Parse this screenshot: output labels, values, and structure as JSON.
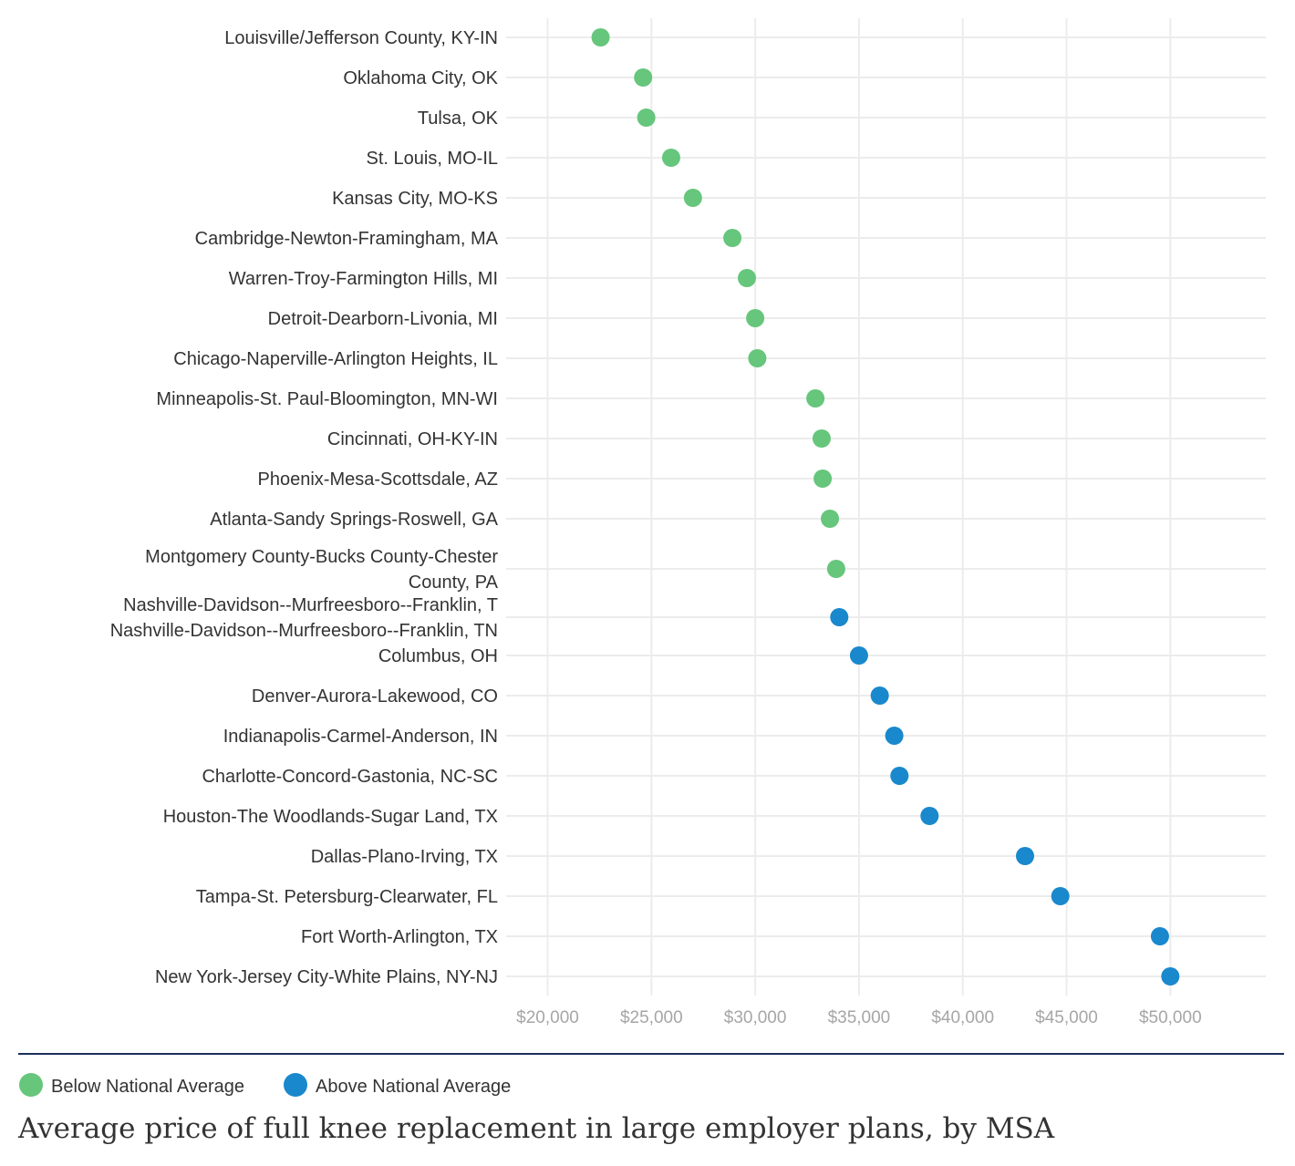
{
  "chart_data": {
    "type": "scatter",
    "title": "Average price of full knee replacement in large employer plans, by MSA",
    "xlabel": "",
    "ylabel": "",
    "xlim": [
      18000,
      54600
    ],
    "x_ticks": [
      20000,
      25000,
      30000,
      35000,
      40000,
      45000,
      50000
    ],
    "x_tick_labels": [
      "$20,000",
      "$25,000",
      "$30,000",
      "$35,000",
      "$40,000",
      "$45,000",
      "$50,000"
    ],
    "grid": true,
    "legend_position": "bottom-left",
    "colors": {
      "Below National Average": "#66c67c",
      "Above National Average": "#1a88cc"
    },
    "legend": [
      "Below National Average",
      "Above National Average"
    ],
    "points": [
      {
        "msa": "Louisville/Jefferson County, KY-IN",
        "value": 22550,
        "group": "Below National Average"
      },
      {
        "msa": "Oklahoma City, OK",
        "value": 24600,
        "group": "Below National Average"
      },
      {
        "msa": "Tulsa, OK",
        "value": 24750,
        "group": "Below National Average"
      },
      {
        "msa": "St. Louis, MO-IL",
        "value": 25950,
        "group": "Below National Average"
      },
      {
        "msa": "Kansas City, MO-KS",
        "value": 27000,
        "group": "Below National Average"
      },
      {
        "msa": "Cambridge-Newton-Framingham, MA",
        "value": 28900,
        "group": "Below National Average"
      },
      {
        "msa": "Warren-Troy-Farmington Hills, MI",
        "value": 29600,
        "group": "Below National Average"
      },
      {
        "msa": "Detroit-Dearborn-Livonia, MI",
        "value": 30000,
        "group": "Below National Average"
      },
      {
        "msa": "Chicago-Naperville-Arlington Heights, IL",
        "value": 30100,
        "group": "Below National Average"
      },
      {
        "msa": "Minneapolis-St. Paul-Bloomington, MN-WI",
        "value": 32900,
        "group": "Below National Average"
      },
      {
        "msa": "Cincinnati, OH-KY-IN",
        "value": 33200,
        "group": "Below National Average"
      },
      {
        "msa": "Phoenix-Mesa-Scottsdale, AZ",
        "value": 33250,
        "group": "Below National Average"
      },
      {
        "msa": "Atlanta-Sandy Springs-Roswell, GA",
        "value": 33600,
        "group": "Below National Average"
      },
      {
        "msa": "Montgomery County-Bucks County-Chester County, PA",
        "value": 33900,
        "group": "Below National Average"
      },
      {
        "msa": "Nashville-Davidson--Murfreesboro--Franklin, TN",
        "value": 34050,
        "group": "Above National Average"
      },
      {
        "msa": "Columbus, OH",
        "value": 35000,
        "group": "Above National Average"
      },
      {
        "msa": "Denver-Aurora-Lakewood, CO",
        "value": 36000,
        "group": "Above National Average"
      },
      {
        "msa": "Indianapolis-Carmel-Anderson, IN",
        "value": 36700,
        "group": "Above National Average"
      },
      {
        "msa": "Charlotte-Concord-Gastonia, NC-SC",
        "value": 36950,
        "group": "Above National Average"
      },
      {
        "msa": "Houston-The Woodlands-Sugar Land, TX",
        "value": 38400,
        "group": "Above National Average"
      },
      {
        "msa": "Dallas-Plano-Irving, TX",
        "value": 43000,
        "group": "Above National Average"
      },
      {
        "msa": "Tampa-St. Petersburg-Clearwater, FL",
        "value": 44700,
        "group": "Above National Average"
      },
      {
        "msa": "Fort Worth-Arlington, TX",
        "value": 49500,
        "group": "Above National Average"
      },
      {
        "msa": "New York-Jersey City-White Plains, NY-NJ",
        "value": 50000,
        "group": "Above National Average"
      }
    ]
  }
}
